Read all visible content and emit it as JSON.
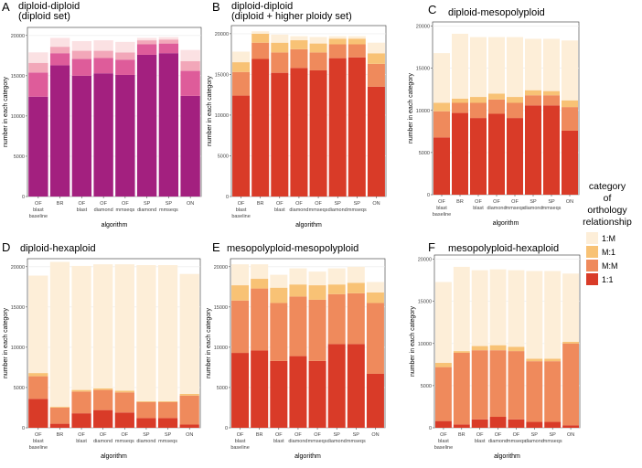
{
  "figure": {
    "legend": {
      "title": [
        "category",
        "of",
        "orthology",
        "relationship"
      ],
      "items": [
        {
          "key": "1:M",
          "label": "1:M"
        },
        {
          "key": "M:1",
          "label": "M:1"
        },
        {
          "key": "M:M",
          "label": "M:M"
        },
        {
          "key": "1:1",
          "label": "1:1"
        }
      ]
    }
  },
  "palettes": {
    "magenta": {
      "1:1": "#a3207f",
      "M:M": "#de5c9a",
      "M:1": "#f2a7b9",
      "1:M": "#fbe1e3"
    },
    "red": {
      "1:1": "#d93b28",
      "M:M": "#ef8a5c",
      "M:1": "#f8c275",
      "1:M": "#fdeed8"
    }
  },
  "chart_data": [
    {
      "letter": "A",
      "type": "bar",
      "stacked": true,
      "palette": "magenta",
      "title": [
        "diploid-diploid",
        "(diploid set)"
      ],
      "xlabel": "algorithm",
      "ylabel": "number in each category",
      "ylim": [
        0,
        21000
      ],
      "yticks": [
        0,
        5000,
        10000,
        15000,
        20000
      ],
      "categories": [
        [
          "OF",
          "blast",
          "baseline"
        ],
        [
          "BR"
        ],
        [
          "OF",
          "blast"
        ],
        [
          "OF",
          "diamond"
        ],
        [
          "OF",
          "mmseqs"
        ],
        [
          "SP",
          "diamond"
        ],
        [
          "SP",
          "mmseqs"
        ],
        [
          "ON"
        ]
      ],
      "series": [
        {
          "name": "1:1",
          "values": [
            12400,
            16300,
            15000,
            15300,
            15100,
            17600,
            17800,
            12500
          ]
        },
        {
          "name": "M:M",
          "values": [
            3000,
            1500,
            2100,
            1900,
            1900,
            1300,
            1200,
            3100
          ]
        },
        {
          "name": "M:1",
          "values": [
            1200,
            800,
            1000,
            900,
            900,
            500,
            500,
            1200
          ]
        },
        {
          "name": "1:M",
          "values": [
            1300,
            1100,
            1200,
            1300,
            1300,
            300,
            300,
            1400
          ]
        }
      ]
    },
    {
      "letter": "B",
      "type": "bar",
      "stacked": true,
      "palette": "red",
      "title": [
        "diploid-diploid",
        "(diploid + higher ploidy set)"
      ],
      "xlabel": "algorithm",
      "ylabel": "number in each category",
      "ylim": [
        0,
        21000
      ],
      "yticks": [
        0,
        5000,
        10000,
        15000,
        20000
      ],
      "categories": [
        [
          "OF",
          "blast",
          "baseline"
        ],
        [
          "BR"
        ],
        [
          "OF",
          "blast"
        ],
        [
          "OF",
          "diamond"
        ],
        [
          "OF",
          "mmseqs"
        ],
        [
          "SP",
          "diamond"
        ],
        [
          "SP",
          "mmseqs"
        ],
        [
          "ON"
        ]
      ],
      "series": [
        {
          "name": "1:1",
          "values": [
            12400,
            16900,
            15200,
            15800,
            15500,
            17000,
            17100,
            13500
          ]
        },
        {
          "name": "M:M",
          "values": [
            2900,
            2000,
            2500,
            2300,
            2200,
            1700,
            1600,
            2800
          ]
        },
        {
          "name": "M:1",
          "values": [
            1200,
            1100,
            1200,
            1100,
            1100,
            700,
            700,
            1300
          ]
        },
        {
          "name": "1:M",
          "values": [
            1300,
            300,
            1000,
            500,
            800,
            300,
            300,
            1300
          ]
        }
      ]
    },
    {
      "letter": "C",
      "type": "bar",
      "stacked": true,
      "palette": "red",
      "title": [
        "diploid-mesopolyploid"
      ],
      "xlabel": "algorithm",
      "ylabel": "number in each category",
      "ylim": [
        0,
        20500
      ],
      "yticks": [
        0,
        5000,
        10000,
        15000,
        20000
      ],
      "categories": [
        [
          "OF",
          "blast",
          "baseline"
        ],
        [
          "BR"
        ],
        [
          "OF",
          "blast"
        ],
        [
          "OF",
          "diamond"
        ],
        [
          "OF",
          "mmseqs"
        ],
        [
          "SP",
          "diamond"
        ],
        [
          "SP",
          "mmseqs"
        ],
        [
          "ON"
        ]
      ],
      "series": [
        {
          "name": "1:1",
          "values": [
            6800,
            9700,
            9100,
            9600,
            9100,
            10600,
            10600,
            7600
          ]
        },
        {
          "name": "M:M",
          "values": [
            3100,
            1200,
            1800,
            1700,
            1800,
            1200,
            1200,
            2800
          ]
        },
        {
          "name": "M:1",
          "values": [
            1000,
            500,
            700,
            700,
            700,
            600,
            500,
            800
          ]
        },
        {
          "name": "1:M",
          "values": [
            5900,
            7700,
            7100,
            6700,
            7100,
            6100,
            6200,
            7100
          ]
        }
      ]
    },
    {
      "letter": "D",
      "type": "bar",
      "stacked": true,
      "palette": "red",
      "title": [
        "diploid-hexaploid"
      ],
      "xlabel": "algorithm",
      "ylabel": "number in each category",
      "ylim": [
        0,
        21000
      ],
      "yticks": [
        0,
        5000,
        10000,
        15000,
        20000
      ],
      "categories": [
        [
          "OF",
          "blast",
          "baseline"
        ],
        [
          "BR"
        ],
        [
          "OF",
          "blast"
        ],
        [
          "OF",
          "diamond"
        ],
        [
          "OF",
          "mmseqs"
        ],
        [
          "SP",
          "diamond"
        ],
        [
          "SP",
          "mmseqs"
        ],
        [
          "ON"
        ]
      ],
      "series": [
        {
          "name": "1:1",
          "values": [
            3600,
            500,
            1800,
            2200,
            1900,
            1200,
            1200,
            400
          ]
        },
        {
          "name": "M:M",
          "values": [
            2800,
            2000,
            2700,
            2500,
            2500,
            2000,
            2000,
            3600
          ]
        },
        {
          "name": "M:1",
          "values": [
            400,
            100,
            200,
            200,
            200,
            100,
            100,
            200
          ]
        },
        {
          "name": "1:M",
          "values": [
            12100,
            18000,
            15400,
            15400,
            15700,
            16900,
            16900,
            14900
          ]
        }
      ]
    },
    {
      "letter": "E",
      "type": "bar",
      "stacked": true,
      "palette": "red",
      "title": [
        "mesopolyploid-mesopolyploid"
      ],
      "xlabel": "algorithm",
      "ylabel": "number in each category",
      "ylim": [
        0,
        21000
      ],
      "yticks": [
        0,
        5000,
        10000,
        15000,
        20000
      ],
      "categories": [
        [
          "OF",
          "blast",
          "baseline"
        ],
        [
          "BR"
        ],
        [
          "OF",
          "blast"
        ],
        [
          "OF",
          "diamond"
        ],
        [
          "OF",
          "mmseqs"
        ],
        [
          "SP",
          "diamond"
        ],
        [
          "SP",
          "mmseqs"
        ],
        [
          "ON"
        ]
      ],
      "series": [
        {
          "name": "1:1",
          "values": [
            9300,
            9600,
            8300,
            8900,
            8300,
            10400,
            10400,
            6700
          ]
        },
        {
          "name": "M:M",
          "values": [
            6500,
            7700,
            7200,
            7400,
            7600,
            6200,
            6300,
            8800
          ]
        },
        {
          "name": "M:1",
          "values": [
            1900,
            1200,
            1900,
            1500,
            1800,
            1200,
            1300,
            1300
          ]
        },
        {
          "name": "1:M",
          "values": [
            2600,
            1800,
            1600,
            2000,
            1700,
            2000,
            2000,
            1300
          ]
        }
      ]
    },
    {
      "letter": "F",
      "type": "bar",
      "stacked": true,
      "palette": "red",
      "title": [
        "mesopolyploid-hexaploid"
      ],
      "xlabel": "algorithm",
      "ylabel": "number in each category",
      "ylim": [
        0,
        20500
      ],
      "yticks": [
        0,
        5000,
        10000,
        15000,
        20000
      ],
      "categories": [
        [
          "OF",
          "blast",
          "baseline"
        ],
        [
          "BR"
        ],
        [
          "OF",
          "blast"
        ],
        [
          "OF",
          "diamond"
        ],
        [
          "OF",
          "mmseqs"
        ],
        [
          "SP",
          "diamond"
        ],
        [
          "SP",
          "mmseqs"
        ],
        [
          "ON"
        ]
      ],
      "series": [
        {
          "name": "1:1",
          "values": [
            800,
            400,
            1000,
            1300,
            1000,
            700,
            700,
            300
          ]
        },
        {
          "name": "M:M",
          "values": [
            6400,
            8500,
            8200,
            7900,
            8100,
            7200,
            7200,
            9700
          ]
        },
        {
          "name": "M:1",
          "values": [
            500,
            200,
            500,
            600,
            500,
            300,
            300,
            200
          ]
        },
        {
          "name": "1:M",
          "values": [
            9600,
            10000,
            9000,
            9000,
            9100,
            10400,
            10400,
            8100
          ]
        }
      ]
    }
  ]
}
